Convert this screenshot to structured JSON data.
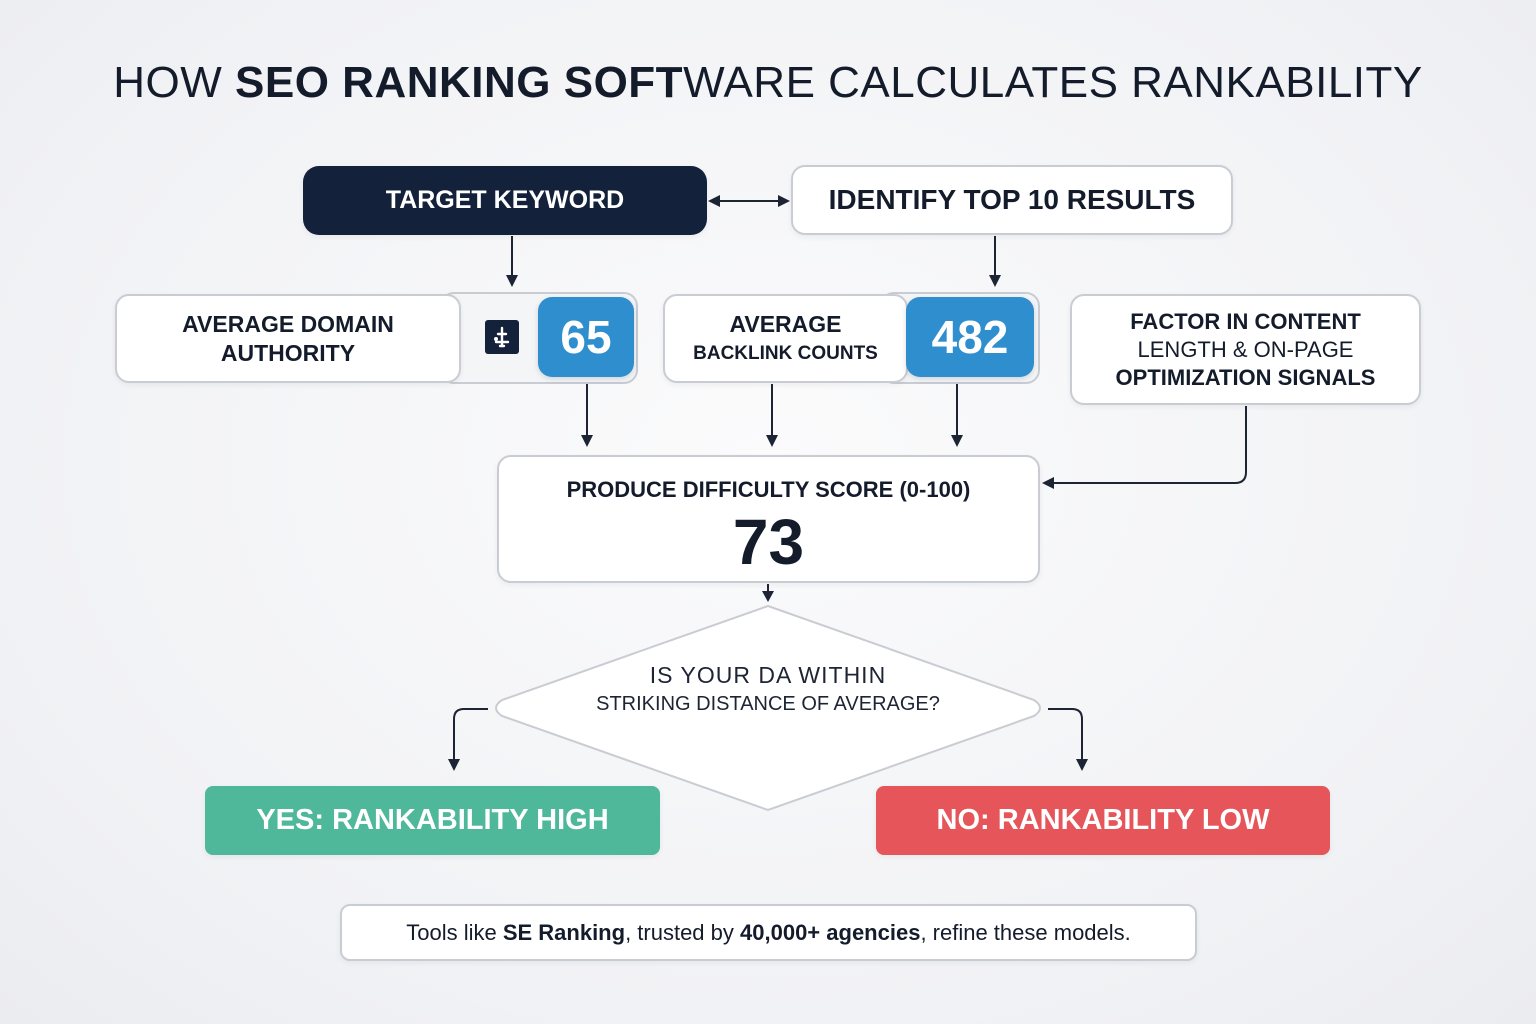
{
  "title": {
    "part1": "HOW ",
    "part2": "SEO RANKING SOFT",
    "part3": "WARE CALCULATES RANKABILITY"
  },
  "nodes": {
    "target_keyword": "TARGET KEYWORD",
    "identify_top10": "IDENTIFY TOP 10 RESULTS",
    "avg_domain_authority": {
      "line1": "AVERAGE DOMAIN",
      "line2": "AUTHORITY",
      "value": "65",
      "icon": "domain-authority-icon"
    },
    "avg_backlinks": {
      "line1": "AVERAGE",
      "line2": "BACKLINK COUNTS",
      "value": "482"
    },
    "content_factor": {
      "line1": "FACTOR IN CONTENT",
      "line2": "LENGTH & ON-PAGE",
      "line3": "OPTIMIZATION SIGNALS"
    },
    "difficulty": {
      "label": "PRODUCE DIFFICULTY SCORE (0-100)",
      "value": "73"
    },
    "decision": {
      "line1": "IS YOUR DA WITHIN",
      "line2": "STRIKING DISTANCE OF AVERAGE?"
    },
    "yes_outcome": "YES: RANKABILITY HIGH",
    "no_outcome": "NO: RANKABILITY LOW"
  },
  "footer": {
    "t1": "Tools like ",
    "t2": "SE Ranking",
    "t3": ", trusted by ",
    "t4": "40,000+ agencies",
    "t5": ", refine these models."
  },
  "colors": {
    "dark_navy": "#14213a",
    "badge_blue": "#2f8fce",
    "yes_green": "#4fb89b",
    "no_red": "#e5555a"
  }
}
